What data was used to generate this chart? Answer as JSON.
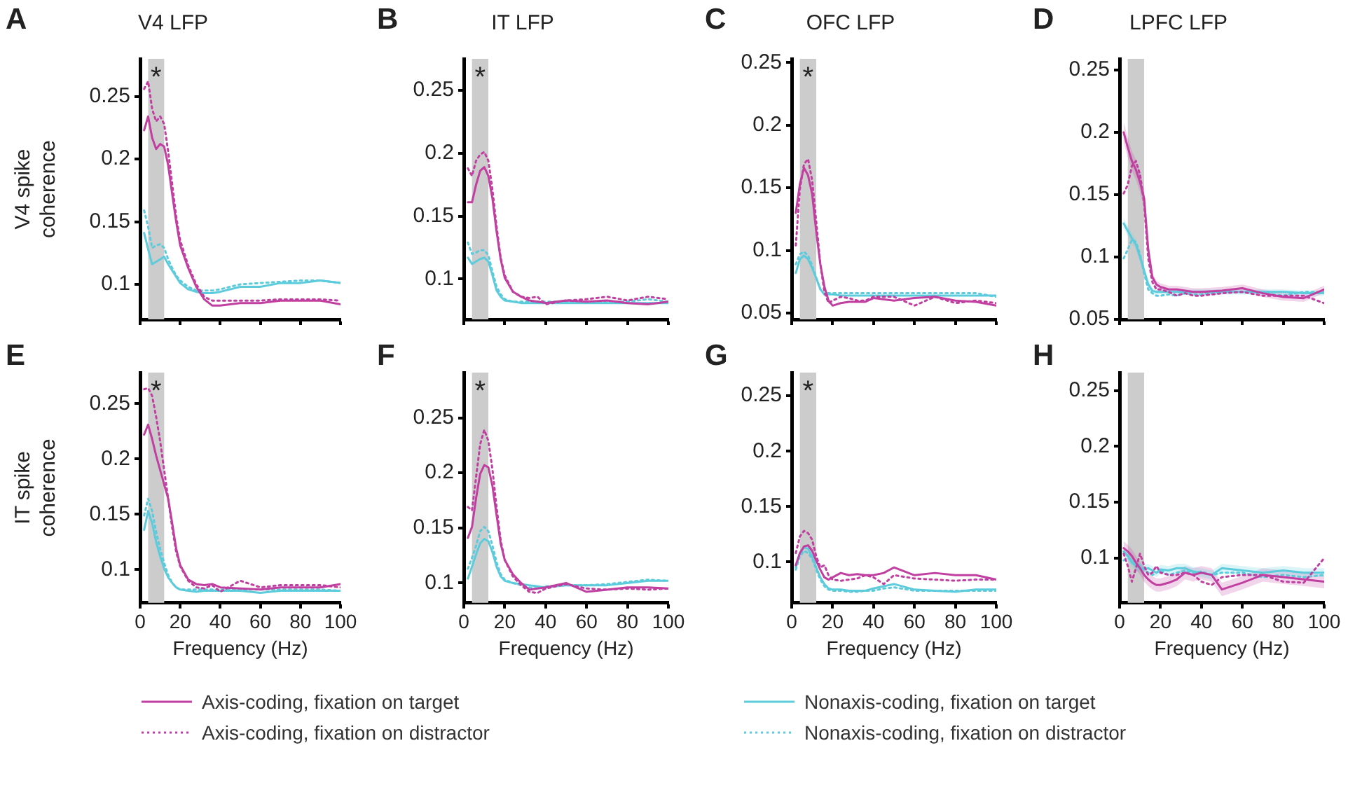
{
  "chart_data": [
    {
      "type": "line",
      "title": "V4 LFP",
      "ylabel": "V4 spike coherence",
      "annotations": [
        "A"
      ],
      "x": [
        2,
        4,
        6,
        8,
        10,
        12,
        14,
        16,
        18,
        20,
        24,
        28,
        32,
        36,
        40,
        50,
        60,
        70,
        80,
        90,
        100
      ],
      "xlim": [
        0,
        100
      ],
      "xticks": [
        0,
        20,
        40,
        60,
        80,
        100
      ],
      "ylim": [
        0.072,
        0.28
      ],
      "yticks": [
        0.1,
        0.15,
        0.2,
        0.25
      ],
      "tick_labels": "y",
      "legend": "bottom",
      "bands": [
        {
          "axis": "x",
          "from": 4,
          "to": 12,
          "color": "#cccccc",
          "label": "*"
        }
      ],
      "series": [
        {
          "name": "Axis-coding, fixation on target",
          "color": "#c03fa0",
          "line_style": "solid",
          "values": [
            0.223,
            0.234,
            0.217,
            0.208,
            0.212,
            0.21,
            0.195,
            0.172,
            0.15,
            0.131,
            0.113,
            0.098,
            0.088,
            0.083,
            0.083,
            0.085,
            0.085,
            0.087,
            0.087,
            0.087,
            0.084
          ]
        },
        {
          "name": "Axis-coding, fixation on distractor",
          "color": "#c03fa0",
          "line_style": "dotted",
          "values": [
            0.256,
            0.262,
            0.24,
            0.23,
            0.234,
            0.228,
            0.206,
            0.18,
            0.154,
            0.135,
            0.115,
            0.1,
            0.09,
            0.087,
            0.087,
            0.087,
            0.087,
            0.088,
            0.088,
            0.088,
            0.087
          ]
        },
        {
          "name": "Nonaxis-coding, fixation on target",
          "color": "#5ccbdc",
          "line_style": "solid",
          "values": [
            0.141,
            0.128,
            0.116,
            0.118,
            0.12,
            0.122,
            0.116,
            0.111,
            0.106,
            0.101,
            0.096,
            0.094,
            0.093,
            0.093,
            0.094,
            0.098,
            0.098,
            0.101,
            0.101,
            0.103,
            0.101
          ]
        },
        {
          "name": "Nonaxis-coding, fixation on distractor",
          "color": "#5ccbdc",
          "line_style": "dotted",
          "values": [
            0.159,
            0.146,
            0.129,
            0.131,
            0.132,
            0.129,
            0.12,
            0.113,
            0.107,
            0.103,
            0.098,
            0.095,
            0.095,
            0.095,
            0.096,
            0.1,
            0.101,
            0.102,
            0.103,
            0.103,
            0.101
          ]
        }
      ]
    },
    {
      "type": "line",
      "title": "IT LFP",
      "annotations": [
        "B"
      ],
      "x": [
        2,
        4,
        6,
        8,
        10,
        12,
        14,
        16,
        18,
        20,
        24,
        28,
        32,
        36,
        40,
        50,
        60,
        70,
        80,
        90,
        100
      ],
      "xlim": [
        0,
        100
      ],
      "xticks": [
        0,
        20,
        40,
        60,
        80,
        100
      ],
      "ylim": [
        0.068,
        0.275
      ],
      "yticks": [
        0.1,
        0.15,
        0.2,
        0.25
      ],
      "tick_labels": "y",
      "bands": [
        {
          "axis": "x",
          "from": 4,
          "to": 12,
          "color": "#cccccc",
          "label": "*"
        }
      ],
      "series": [
        {
          "color": "#c03fa0",
          "line_style": "solid",
          "values": [
            0.161,
            0.161,
            0.175,
            0.186,
            0.189,
            0.182,
            0.164,
            0.138,
            0.116,
            0.101,
            0.09,
            0.086,
            0.083,
            0.082,
            0.081,
            0.083,
            0.082,
            0.083,
            0.081,
            0.08,
            0.082
          ]
        },
        {
          "color": "#c03fa0",
          "line_style": "dotted",
          "values": [
            0.188,
            0.182,
            0.194,
            0.199,
            0.201,
            0.194,
            0.171,
            0.142,
            0.117,
            0.103,
            0.09,
            0.086,
            0.085,
            0.086,
            0.08,
            0.083,
            0.084,
            0.086,
            0.083,
            0.086,
            0.084
          ]
        },
        {
          "color": "#5ccbdc",
          "line_style": "solid",
          "values": [
            0.117,
            0.112,
            0.114,
            0.116,
            0.117,
            0.114,
            0.103,
            0.091,
            0.086,
            0.083,
            0.082,
            0.081,
            0.081,
            0.081,
            0.081,
            0.081,
            0.081,
            0.081,
            0.081,
            0.081,
            0.081
          ]
        },
        {
          "color": "#5ccbdc",
          "line_style": "dotted",
          "values": [
            0.129,
            0.12,
            0.121,
            0.123,
            0.123,
            0.119,
            0.106,
            0.094,
            0.088,
            0.084,
            0.082,
            0.082,
            0.082,
            0.082,
            0.082,
            0.082,
            0.082,
            0.082,
            0.082,
            0.084,
            0.082
          ]
        }
      ]
    },
    {
      "type": "line",
      "title": "OFC LFP",
      "annotations": [
        "C"
      ],
      "x": [
        2,
        4,
        6,
        8,
        10,
        12,
        14,
        16,
        18,
        20,
        24,
        28,
        32,
        36,
        40,
        50,
        60,
        70,
        80,
        90,
        100
      ],
      "xlim": [
        0,
        100
      ],
      "xticks": [
        0,
        20,
        40,
        60,
        80,
        100
      ],
      "ylim": [
        0.045,
        0.253
      ],
      "yticks": [
        0.05,
        0.1,
        0.15,
        0.2,
        0.25
      ],
      "tick_labels": "y",
      "bands": [
        {
          "axis": "x",
          "from": 4,
          "to": 12,
          "color": "#cccccc",
          "label": "*"
        }
      ],
      "series": [
        {
          "color": "#c03fa0",
          "line_style": "solid",
          "values": [
            0.13,
            0.153,
            0.166,
            0.16,
            0.145,
            0.115,
            0.089,
            0.071,
            0.06,
            0.056,
            0.058,
            0.059,
            0.059,
            0.059,
            0.062,
            0.06,
            0.062,
            0.063,
            0.06,
            0.059,
            0.056
          ]
        },
        {
          "color": "#c03fa0",
          "line_style": "dotted",
          "values": [
            0.104,
            0.149,
            0.169,
            0.173,
            0.156,
            0.123,
            0.089,
            0.067,
            0.058,
            0.06,
            0.063,
            0.062,
            0.06,
            0.06,
            0.063,
            0.063,
            0.056,
            0.063,
            0.058,
            0.06,
            0.058
          ]
        },
        {
          "color": "#5ccbdc",
          "line_style": "solid",
          "values": [
            0.082,
            0.093,
            0.096,
            0.093,
            0.086,
            0.078,
            0.069,
            0.065,
            0.065,
            0.065,
            0.064,
            0.064,
            0.064,
            0.064,
            0.064,
            0.064,
            0.064,
            0.064,
            0.064,
            0.064,
            0.064
          ]
        },
        {
          "color": "#5ccbdc",
          "line_style": "dotted",
          "values": [
            0.089,
            0.097,
            0.099,
            0.096,
            0.088,
            0.078,
            0.069,
            0.065,
            0.066,
            0.066,
            0.066,
            0.066,
            0.066,
            0.066,
            0.066,
            0.066,
            0.066,
            0.066,
            0.066,
            0.066,
            0.063
          ]
        }
      ]
    },
    {
      "type": "line",
      "title": "LPFC LFP",
      "annotations": [
        "D"
      ],
      "x": [
        2,
        4,
        6,
        8,
        10,
        12,
        14,
        16,
        18,
        20,
        24,
        28,
        32,
        36,
        40,
        50,
        60,
        70,
        80,
        90,
        100
      ],
      "xlim": [
        0,
        100
      ],
      "xticks": [
        0,
        20,
        40,
        60,
        80,
        100
      ],
      "ylim": [
        0.05,
        0.259
      ],
      "yticks": [
        0.05,
        0.1,
        0.15,
        0.2,
        0.25
      ],
      "tick_labels": "y",
      "bands": [
        {
          "axis": "x",
          "from": 4,
          "to": 12,
          "color": "#cccccc"
        }
      ],
      "series": [
        {
          "color": "#c03fa0",
          "line_style": "solid",
          "values": [
            0.2,
            0.188,
            0.177,
            0.17,
            0.16,
            0.147,
            0.106,
            0.084,
            0.078,
            0.076,
            0.074,
            0.074,
            0.073,
            0.072,
            0.072,
            0.073,
            0.075,
            0.071,
            0.068,
            0.067,
            0.074
          ],
          "lower": [
            0.192,
            0.18,
            0.169,
            0.162,
            0.152,
            0.139,
            0.098,
            0.081,
            0.075,
            0.073,
            0.071,
            0.071,
            0.07,
            0.069,
            0.069,
            0.07,
            0.072,
            0.068,
            0.065,
            0.064,
            0.071
          ],
          "upper": [
            0.208,
            0.196,
            0.185,
            0.178,
            0.168,
            0.155,
            0.114,
            0.087,
            0.081,
            0.079,
            0.077,
            0.077,
            0.076,
            0.075,
            0.075,
            0.076,
            0.078,
            0.074,
            0.071,
            0.07,
            0.077
          ]
        },
        {
          "color": "#c03fa0",
          "line_style": "dotted",
          "values": [
            0.151,
            0.158,
            0.173,
            0.177,
            0.166,
            0.143,
            0.099,
            0.08,
            0.074,
            0.074,
            0.072,
            0.069,
            0.071,
            0.069,
            0.069,
            0.071,
            0.072,
            0.069,
            0.069,
            0.069,
            0.063
          ]
        },
        {
          "color": "#5ccbdc",
          "line_style": "solid",
          "values": [
            0.127,
            0.121,
            0.115,
            0.11,
            0.1,
            0.089,
            0.078,
            0.073,
            0.072,
            0.072,
            0.072,
            0.072,
            0.072,
            0.072,
            0.072,
            0.072,
            0.072,
            0.072,
            0.072,
            0.071,
            0.071
          ],
          "lower": [
            0.123,
            0.117,
            0.111,
            0.106,
            0.096,
            0.085,
            0.074,
            0.071,
            0.07,
            0.07,
            0.07,
            0.07,
            0.07,
            0.07,
            0.07,
            0.07,
            0.07,
            0.07,
            0.07,
            0.069,
            0.069
          ],
          "upper": [
            0.131,
            0.125,
            0.119,
            0.114,
            0.104,
            0.093,
            0.082,
            0.075,
            0.074,
            0.074,
            0.074,
            0.074,
            0.074,
            0.074,
            0.074,
            0.074,
            0.074,
            0.074,
            0.074,
            0.073,
            0.073
          ]
        },
        {
          "color": "#5ccbdc",
          "line_style": "dotted",
          "values": [
            0.099,
            0.106,
            0.114,
            0.112,
            0.102,
            0.087,
            0.074,
            0.071,
            0.069,
            0.069,
            0.07,
            0.069,
            0.071,
            0.07,
            0.07,
            0.072,
            0.072,
            0.071,
            0.069,
            0.072,
            0.072
          ]
        }
      ]
    },
    {
      "type": "line",
      "ylabel": "IT spike coherence",
      "xlabel": "Frequency (Hz)",
      "annotations": [
        "E"
      ],
      "x": [
        2,
        4,
        6,
        8,
        10,
        12,
        14,
        16,
        18,
        20,
        24,
        28,
        32,
        36,
        40,
        50,
        60,
        70,
        80,
        90,
        100
      ],
      "xlim": [
        0,
        100
      ],
      "xticks": [
        0,
        20,
        40,
        60,
        80,
        100
      ],
      "ylim": [
        0.07,
        0.278
      ],
      "yticks": [
        0.1,
        0.15,
        0.2,
        0.25
      ],
      "bands": [
        {
          "axis": "x",
          "from": 4,
          "to": 12,
          "color": "#cccccc",
          "label": "*"
        }
      ],
      "series": [
        {
          "color": "#c03fa0",
          "line_style": "solid",
          "values": [
            0.222,
            0.231,
            0.218,
            0.203,
            0.19,
            0.177,
            0.164,
            0.142,
            0.119,
            0.104,
            0.091,
            0.087,
            0.086,
            0.087,
            0.084,
            0.083,
            0.082,
            0.084,
            0.084,
            0.084,
            0.087
          ]
        },
        {
          "color": "#c03fa0",
          "line_style": "dotted",
          "values": [
            0.263,
            0.264,
            0.257,
            0.238,
            0.216,
            0.19,
            0.164,
            0.138,
            0.116,
            0.103,
            0.09,
            0.084,
            0.083,
            0.086,
            0.08,
            0.09,
            0.084,
            0.086,
            0.086,
            0.086,
            0.084
          ]
        },
        {
          "color": "#5ccbdc",
          "line_style": "solid",
          "values": [
            0.136,
            0.153,
            0.142,
            0.125,
            0.112,
            0.101,
            0.093,
            0.088,
            0.084,
            0.082,
            0.081,
            0.08,
            0.081,
            0.081,
            0.081,
            0.081,
            0.079,
            0.081,
            0.081,
            0.081,
            0.081
          ]
        },
        {
          "color": "#5ccbdc",
          "line_style": "dotted",
          "values": [
            0.149,
            0.164,
            0.153,
            0.134,
            0.119,
            0.106,
            0.095,
            0.088,
            0.084,
            0.082,
            0.082,
            0.082,
            0.082,
            0.082,
            0.082,
            0.082,
            0.082,
            0.082,
            0.082,
            0.082,
            0.081
          ]
        }
      ]
    },
    {
      "type": "line",
      "xlabel": "Frequency (Hz)",
      "annotations": [
        "F"
      ],
      "x": [
        2,
        4,
        6,
        8,
        10,
        12,
        14,
        16,
        18,
        20,
        24,
        28,
        32,
        36,
        40,
        50,
        60,
        70,
        80,
        90,
        100
      ],
      "xlim": [
        0,
        100
      ],
      "xticks": [
        0,
        20,
        40,
        60,
        80,
        100
      ],
      "ylim": [
        0.082,
        0.291
      ],
      "yticks": [
        0.1,
        0.15,
        0.2,
        0.25
      ],
      "bands": [
        {
          "axis": "x",
          "from": 4,
          "to": 12,
          "color": "#cccccc",
          "label": "*"
        }
      ],
      "series": [
        {
          "color": "#c03fa0",
          "line_style": "solid",
          "values": [
            0.141,
            0.151,
            0.177,
            0.199,
            0.207,
            0.205,
            0.188,
            0.162,
            0.136,
            0.121,
            0.108,
            0.1,
            0.094,
            0.095,
            0.096,
            0.1,
            0.092,
            0.094,
            0.096,
            0.096,
            0.095
          ]
        },
        {
          "color": "#c03fa0",
          "line_style": "dotted",
          "values": [
            0.169,
            0.166,
            0.196,
            0.226,
            0.239,
            0.229,
            0.203,
            0.169,
            0.139,
            0.121,
            0.106,
            0.098,
            0.092,
            0.091,
            0.095,
            0.099,
            0.095,
            0.094,
            0.095,
            0.094,
            0.095
          ]
        },
        {
          "color": "#5ccbdc",
          "line_style": "solid",
          "values": [
            0.104,
            0.115,
            0.126,
            0.136,
            0.14,
            0.138,
            0.128,
            0.115,
            0.106,
            0.102,
            0.1,
            0.099,
            0.098,
            0.097,
            0.096,
            0.098,
            0.098,
            0.098,
            0.1,
            0.102,
            0.102
          ]
        },
        {
          "color": "#5ccbdc",
          "line_style": "dotted",
          "values": [
            0.113,
            0.123,
            0.134,
            0.147,
            0.151,
            0.147,
            0.134,
            0.119,
            0.108,
            0.103,
            0.1,
            0.098,
            0.096,
            0.095,
            0.097,
            0.098,
            0.098,
            0.099,
            0.101,
            0.103,
            0.102
          ]
        }
      ]
    },
    {
      "type": "line",
      "xlabel": "Frequency (Hz)",
      "annotations": [
        "G"
      ],
      "x": [
        2,
        4,
        6,
        8,
        10,
        12,
        14,
        16,
        18,
        20,
        24,
        28,
        32,
        36,
        40,
        45,
        50,
        60,
        70,
        80,
        90,
        100
      ],
      "xlim": [
        0,
        100
      ],
      "xticks": [
        0,
        20,
        40,
        60,
        80,
        100
      ],
      "ylim": [
        0.063,
        0.271
      ],
      "yticks": [
        0.1,
        0.15,
        0.2,
        0.25
      ],
      "bands": [
        {
          "axis": "x",
          "from": 4,
          "to": 12,
          "color": "#cccccc",
          "label": "*"
        }
      ],
      "series": [
        {
          "color": "#c03fa0",
          "line_style": "solid",
          "values": [
            0.097,
            0.108,
            0.114,
            0.115,
            0.11,
            0.101,
            0.093,
            0.086,
            0.084,
            0.086,
            0.09,
            0.088,
            0.089,
            0.088,
            0.088,
            0.09,
            0.095,
            0.088,
            0.09,
            0.088,
            0.088,
            0.084
          ]
        },
        {
          "color": "#c03fa0",
          "line_style": "dotted",
          "values": [
            0.108,
            0.123,
            0.128,
            0.126,
            0.12,
            0.105,
            0.095,
            0.097,
            0.088,
            0.084,
            0.083,
            0.084,
            0.085,
            0.088,
            0.086,
            0.08,
            0.088,
            0.085,
            0.084,
            0.083,
            0.084,
            0.084
          ]
        },
        {
          "color": "#5ccbdc",
          "line_style": "solid",
          "values": [
            0.095,
            0.108,
            0.113,
            0.112,
            0.105,
            0.095,
            0.086,
            0.08,
            0.076,
            0.075,
            0.075,
            0.074,
            0.074,
            0.074,
            0.076,
            0.078,
            0.08,
            0.075,
            0.074,
            0.073,
            0.075,
            0.075
          ]
        },
        {
          "color": "#5ccbdc",
          "line_style": "dotted",
          "values": [
            0.093,
            0.105,
            0.11,
            0.108,
            0.103,
            0.093,
            0.084,
            0.078,
            0.075,
            0.074,
            0.074,
            0.073,
            0.073,
            0.074,
            0.074,
            0.076,
            0.077,
            0.074,
            0.074,
            0.074,
            0.074,
            0.074
          ]
        }
      ]
    },
    {
      "type": "line",
      "xlabel": "Frequency (Hz)",
      "annotations": [
        "H"
      ],
      "x": [
        2,
        4,
        6,
        8,
        10,
        12,
        14,
        16,
        18,
        20,
        24,
        28,
        32,
        36,
        40,
        45,
        50,
        60,
        70,
        80,
        90,
        100
      ],
      "xlim": [
        0,
        100
      ],
      "xticks": [
        0,
        20,
        40,
        60,
        80,
        100
      ],
      "ylim": [
        0.06,
        0.266
      ],
      "yticks": [
        0.1,
        0.15,
        0.2,
        0.25
      ],
      "bands": [
        {
          "axis": "x",
          "from": 4,
          "to": 12,
          "color": "#cccccc"
        }
      ],
      "series": [
        {
          "color": "#c03fa0",
          "line_style": "solid",
          "values": [
            0.109,
            0.106,
            0.102,
            0.096,
            0.091,
            0.085,
            0.081,
            0.078,
            0.076,
            0.076,
            0.078,
            0.081,
            0.087,
            0.085,
            0.087,
            0.085,
            0.072,
            0.078,
            0.085,
            0.083,
            0.081,
            0.079
          ],
          "lower": [
            0.103,
            0.1,
            0.096,
            0.09,
            0.085,
            0.079,
            0.075,
            0.072,
            0.07,
            0.07,
            0.072,
            0.075,
            0.081,
            0.079,
            0.081,
            0.079,
            0.066,
            0.072,
            0.079,
            0.077,
            0.075,
            0.073
          ],
          "upper": [
            0.115,
            0.112,
            0.108,
            0.102,
            0.097,
            0.091,
            0.087,
            0.084,
            0.082,
            0.082,
            0.084,
            0.087,
            0.093,
            0.091,
            0.093,
            0.091,
            0.078,
            0.084,
            0.091,
            0.089,
            0.087,
            0.085
          ]
        },
        {
          "color": "#c03fa0",
          "line_style": "dotted",
          "values": [
            0.104,
            0.093,
            0.079,
            0.091,
            0.104,
            0.093,
            0.085,
            0.087,
            0.093,
            0.087,
            0.085,
            0.085,
            0.087,
            0.085,
            0.079,
            0.076,
            0.083,
            0.085,
            0.085,
            0.079,
            0.078,
            0.1
          ]
        },
        {
          "color": "#5ccbdc",
          "line_style": "solid",
          "values": [
            0.106,
            0.102,
            0.096,
            0.093,
            0.091,
            0.09,
            0.091,
            0.089,
            0.087,
            0.09,
            0.089,
            0.091,
            0.091,
            0.088,
            0.087,
            0.085,
            0.091,
            0.089,
            0.087,
            0.089,
            0.087,
            0.087
          ],
          "lower": [
            0.102,
            0.098,
            0.092,
            0.089,
            0.087,
            0.086,
            0.087,
            0.085,
            0.083,
            0.086,
            0.085,
            0.087,
            0.087,
            0.084,
            0.083,
            0.081,
            0.087,
            0.085,
            0.083,
            0.085,
            0.083,
            0.083
          ],
          "upper": [
            0.11,
            0.106,
            0.1,
            0.097,
            0.095,
            0.094,
            0.095,
            0.093,
            0.091,
            0.094,
            0.093,
            0.095,
            0.095,
            0.092,
            0.091,
            0.089,
            0.095,
            0.093,
            0.091,
            0.093,
            0.091,
            0.091
          ]
        },
        {
          "color": "#5ccbdc",
          "line_style": "dotted",
          "values": [
            0.098,
            0.1,
            0.098,
            0.096,
            0.093,
            0.09,
            0.087,
            0.085,
            0.087,
            0.089,
            0.085,
            0.087,
            0.089,
            0.087,
            0.088,
            0.085,
            0.087,
            0.087,
            0.083,
            0.085,
            0.083,
            0.085
          ]
        }
      ]
    }
  ]
}
